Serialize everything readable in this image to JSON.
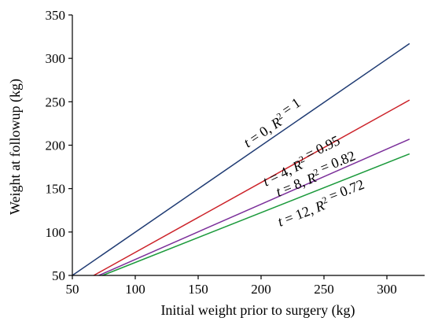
{
  "chart_data": {
    "type": "line",
    "title": "",
    "xlabel": "Initial weight prior to surgery (kg)",
    "ylabel": "Weight at followup (kg)",
    "xlim": [
      50,
      330
    ],
    "ylim": [
      50,
      350
    ],
    "xticks": [
      50,
      100,
      150,
      200,
      250,
      300
    ],
    "yticks": [
      50,
      100,
      150,
      200,
      250,
      300,
      350
    ],
    "grid": false,
    "series": [
      {
        "t": "0",
        "r2": "1",
        "color": "#1f3b73",
        "x": [
          50,
          318
        ],
        "y": [
          50,
          317
        ]
      },
      {
        "t": "4",
        "r2": "0.95",
        "color": "#cc2229",
        "x": [
          67,
          318
        ],
        "y": [
          50,
          252
        ]
      },
      {
        "t": "8",
        "r2": "0.82",
        "color": "#7b2f9a",
        "x": [
          71,
          318
        ],
        "y": [
          50,
          207
        ]
      },
      {
        "t": "12",
        "r2": "0.72",
        "color": "#1c9a3c",
        "x": [
          74,
          318
        ],
        "y": [
          50,
          190
        ]
      }
    ]
  }
}
